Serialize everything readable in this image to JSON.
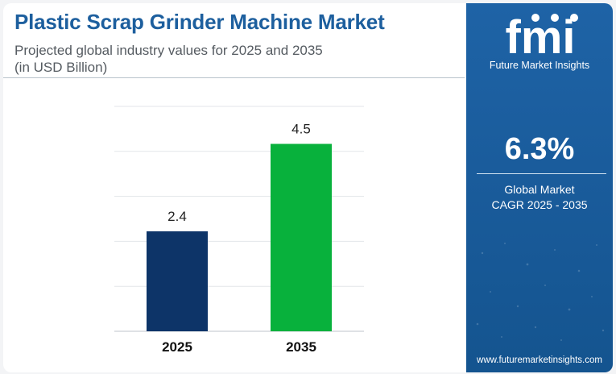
{
  "title": "Plastic Scrap Grinder Machine Market",
  "subtitle_line1": "Projected global industry values for 2025 and 2035",
  "subtitle_line2": "(in USD Billion)",
  "brand": {
    "logo_text": "fmi",
    "name": "Future Market Insights",
    "url": "www.futuremarketinsights.com"
  },
  "cagr": {
    "value": "6.3%",
    "label_line1": "Global Market",
    "label_line2": "CAGR 2025 - 2035"
  },
  "colors": {
    "bar_2025": "#0d3468",
    "bar_2035": "#08b13c",
    "title": "#1d5f9e",
    "panel": "#1a5c9c"
  },
  "chart_data": {
    "type": "bar",
    "categories": [
      "2025",
      "2035"
    ],
    "values": [
      2.4,
      4.5
    ],
    "value_labels": [
      "2.4",
      "4.5"
    ],
    "title": "Plastic Scrap Grinder Machine Market",
    "subtitle": "Projected global industry values for 2025 and 2035 (in USD Billion)",
    "xlabel": "",
    "ylabel": "",
    "ylim": [
      0,
      5.4
    ],
    "grid": true,
    "legend": "none"
  }
}
